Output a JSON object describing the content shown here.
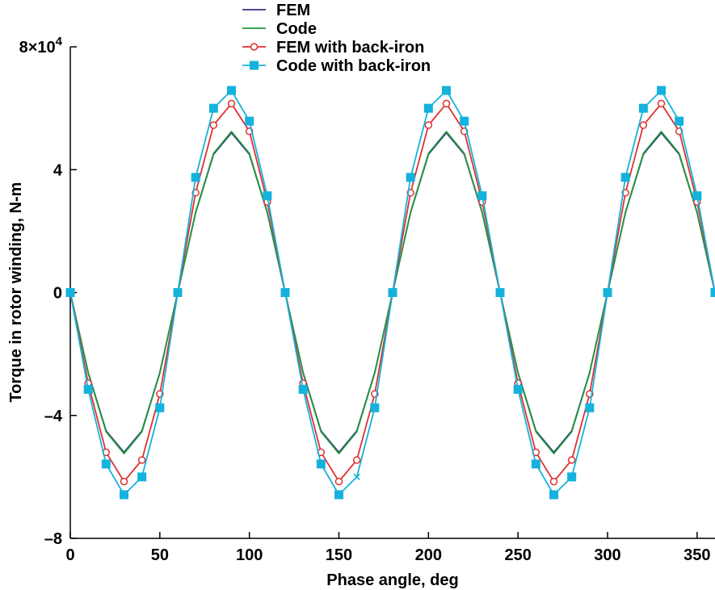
{
  "chart_data": {
    "type": "line",
    "xlabel": "Phase angle, deg",
    "ylabel": "Torque in rotor winding, N-m",
    "xlim": [
      0,
      360
    ],
    "ylim": [
      -80000,
      80000
    ],
    "x_ticks": [
      0,
      50,
      100,
      150,
      200,
      250,
      300,
      350
    ],
    "x_tick_labels": [
      "0",
      "50",
      "100",
      "150",
      "200",
      "250",
      "300",
      "350"
    ],
    "y_ticks": [
      -80000,
      -40000,
      0,
      40000,
      80000
    ],
    "y_tick_labels": [
      "–8",
      "–4",
      "0",
      "4",
      "8×10"
    ],
    "y_top_exponent": "4",
    "grid": false,
    "legend_position": "top-center",
    "series": [
      {
        "name": "FEM",
        "color": "#3b2a8c",
        "marker": "none",
        "x": [
          0,
          10,
          20,
          30,
          40,
          50,
          60,
          70,
          80,
          90,
          100,
          110,
          120,
          130,
          140,
          150,
          160,
          170,
          180,
          190,
          200,
          210,
          220,
          230,
          240,
          250,
          260,
          270,
          280,
          290,
          300,
          310,
          320,
          330,
          340,
          350,
          360
        ],
        "values": [
          0,
          -26000,
          -45000,
          -52000,
          -45000,
          -26000,
          0,
          26000,
          45000,
          52000,
          45000,
          26000,
          0,
          -26000,
          -45000,
          -52000,
          -45000,
          -26000,
          0,
          26000,
          45000,
          52000,
          45000,
          26000,
          0,
          -26000,
          -45000,
          -52000,
          -45000,
          -26000,
          0,
          26000,
          45000,
          52000,
          45000,
          26000,
          0
        ]
      },
      {
        "name": "Code",
        "color": "#1f9a3a",
        "marker": "none",
        "x": [
          0,
          10,
          20,
          30,
          40,
          50,
          60,
          70,
          80,
          90,
          100,
          110,
          120,
          130,
          140,
          150,
          160,
          170,
          180,
          190,
          200,
          210,
          220,
          230,
          240,
          250,
          260,
          270,
          280,
          290,
          300,
          310,
          320,
          330,
          340,
          350,
          360
        ],
        "values": [
          0,
          -26200,
          -45300,
          -52400,
          -45300,
          -26200,
          0,
          26200,
          45300,
          52400,
          45300,
          26200,
          0,
          -26200,
          -45300,
          -52400,
          -45300,
          -26200,
          0,
          26200,
          45300,
          52400,
          45300,
          26200,
          0,
          -26200,
          -45300,
          -52400,
          -45300,
          -26200,
          0,
          26200,
          45300,
          52400,
          45300,
          26200,
          0
        ]
      },
      {
        "name": "FEM with back-iron",
        "color": "#e0302e",
        "marker": "circle",
        "x": [
          0,
          10,
          20,
          30,
          40,
          50,
          60,
          70,
          80,
          90,
          100,
          110,
          120,
          130,
          140,
          150,
          160,
          170,
          180,
          190,
          200,
          210,
          220,
          230,
          240,
          250,
          260,
          270,
          280,
          290,
          300,
          310,
          320,
          330,
          340,
          350,
          360
        ],
        "values": [
          0,
          -29500,
          -52000,
          -61500,
          -54500,
          -33000,
          0,
          32500,
          54500,
          61500,
          52500,
          29500,
          0,
          -29500,
          -52000,
          -61500,
          -54500,
          -33000,
          0,
          32500,
          54500,
          61500,
          52500,
          29500,
          0,
          -29500,
          -52000,
          -61500,
          -54500,
          -33000,
          0,
          32500,
          54500,
          61500,
          52500,
          29500,
          0
        ]
      },
      {
        "name": "Code with back-iron",
        "color": "#14b2dc",
        "marker": "square",
        "x": [
          0,
          10,
          20,
          30,
          40,
          50,
          60,
          70,
          80,
          90,
          100,
          110,
          120,
          130,
          140,
          150,
          160,
          170,
          180,
          190,
          200,
          210,
          220,
          230,
          240,
          250,
          260,
          270,
          280,
          290,
          300,
          310,
          320,
          330,
          340,
          350,
          360
        ],
        "values": [
          0,
          -31500,
          -55800,
          -65800,
          -60000,
          -37500,
          0,
          37500,
          60000,
          65800,
          55800,
          31500,
          0,
          -31500,
          -55800,
          -65800,
          -60000,
          -37500,
          0,
          37500,
          60000,
          65800,
          55800,
          31500,
          0,
          -31500,
          -55800,
          -65800,
          -60000,
          -37500,
          0,
          37500,
          60000,
          65800,
          55800,
          31500,
          0
        ],
        "cross_marker_at": [
          160
        ]
      }
    ]
  }
}
